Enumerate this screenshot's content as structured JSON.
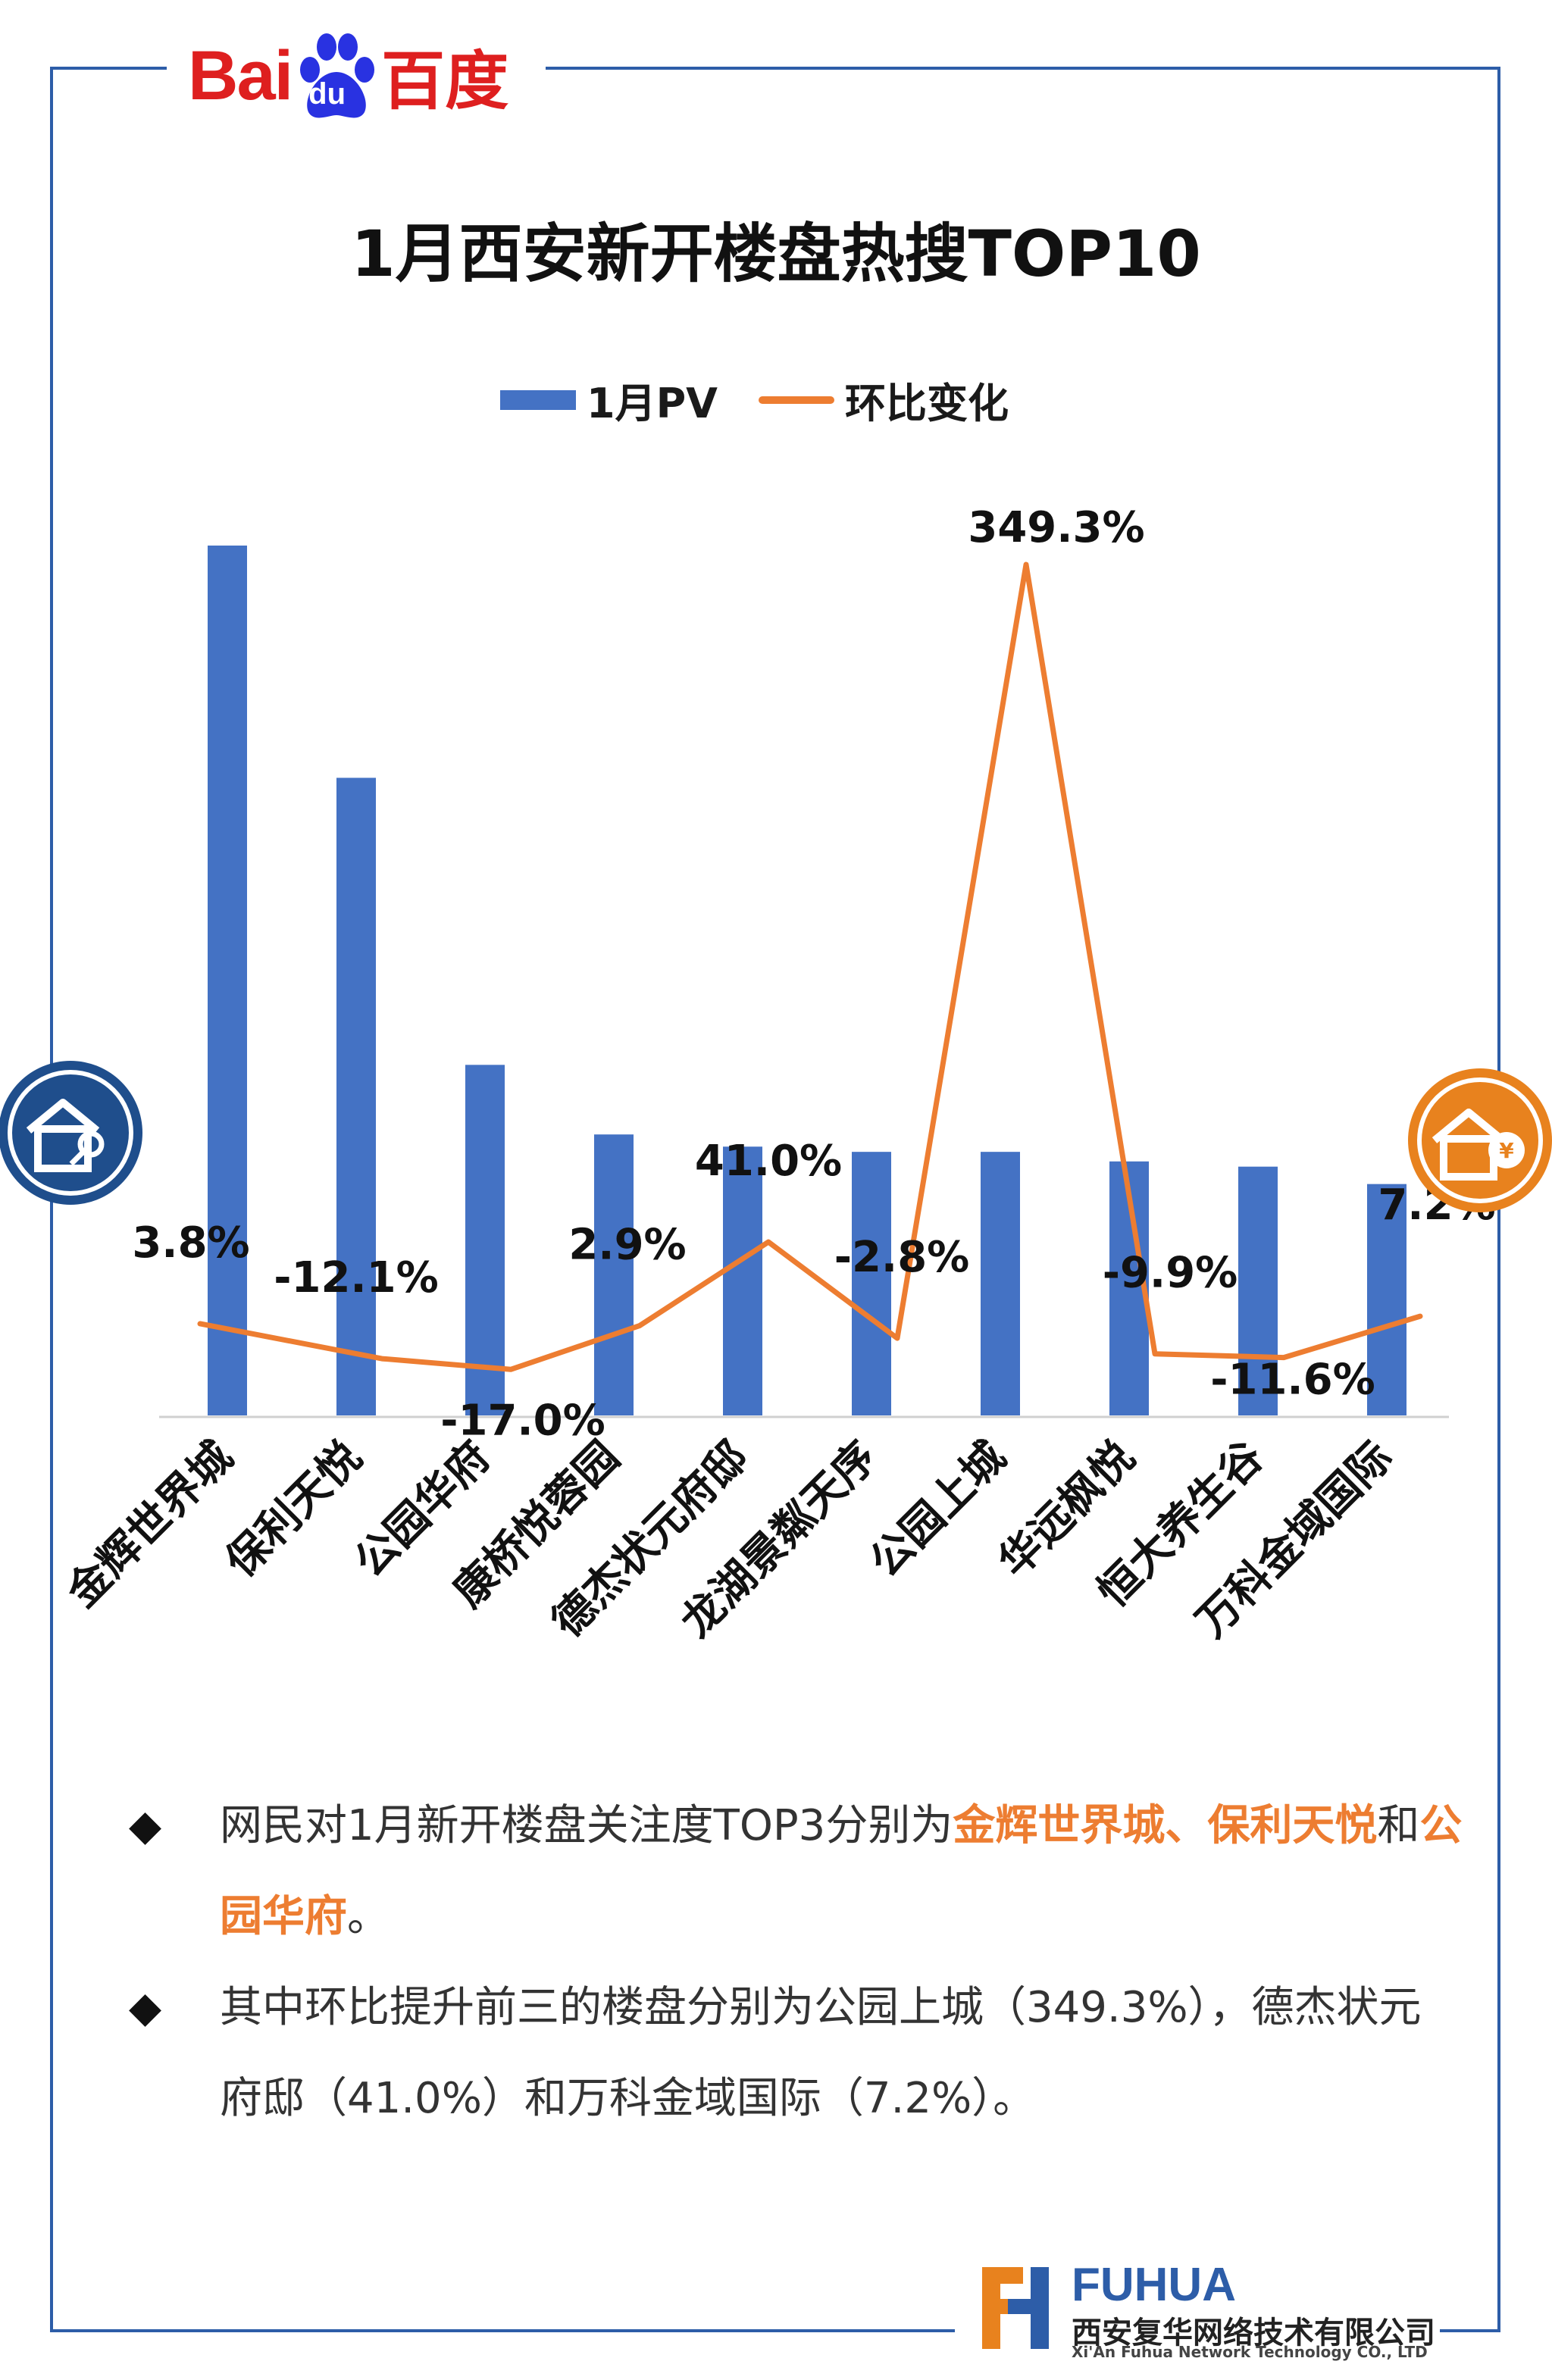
{
  "brand": {
    "baidu_latin": "Bai",
    "baidu_du": "du",
    "baidu_cn": "百度"
  },
  "title": "1月西安新开楼盘热搜TOP10",
  "legend": {
    "bar_label": "1月PV",
    "line_label": "环比变化"
  },
  "colors": {
    "bar": "#4472c4",
    "line": "#ed7d31",
    "frame": "#2d5da8",
    "highlight": "#ed7d31"
  },
  "chart_data": {
    "type": "bar+line",
    "title": "1月西安新开楼盘热搜TOP10",
    "categories": [
      "金辉世界城",
      "保利天悦",
      "公园华府",
      "康桥悦蓉园",
      "德杰状元府邸",
      "龙湖景粼天序",
      "公园上城",
      "华远枫悦",
      "恒大养生谷",
      "万科金域国际"
    ],
    "series": [
      {
        "name": "1月PV",
        "kind": "bar",
        "axis": "primary",
        "values": [
          100,
          73.3,
          40.3,
          32.3,
          30.9,
          30.3,
          30.3,
          29.2,
          28.6,
          26.6
        ]
      },
      {
        "name": "环比变化",
        "kind": "line",
        "axis": "secondary",
        "unit": "%",
        "values": [
          3.8,
          -12.1,
          -17.0,
          2.9,
          41.0,
          -2.8,
          349.3,
          -9.9,
          -11.6,
          7.2
        ],
        "labels": [
          "3.8%",
          "-12.1%",
          "-17.0%",
          "2.9%",
          "41.0%",
          "-2.8%",
          "349.3%",
          "-9.9%",
          "-11.6%",
          "7.2%"
        ]
      }
    ],
    "primary_axis_visible": false,
    "secondary_axis_visible": false,
    "grid": false,
    "legend_position": "top"
  },
  "notes": {
    "item1": {
      "text_a": "网民对1月新开楼盘关注度TOP3分别为",
      "hl_a": "金辉世界城、保利天悦",
      "text_b": "和",
      "hl_b": "公园华府",
      "text_c": "。"
    },
    "item2": {
      "text": "其中环比提升前三的楼盘分别为公园上城（349.3%），德杰状元府邸（41.0%）和万科金域国际（7.2%）。"
    }
  },
  "footer": {
    "brand_en": "FUHUA",
    "brand_cn": "西安复华网络技术有限公司",
    "brand_en_full": "Xi'An Fuhua Network Technology CO., LTD"
  },
  "icons": {
    "badge_left": "house-key-icon",
    "badge_right": "house-yen-icon",
    "bullet": "diamond-bullet-icon"
  }
}
